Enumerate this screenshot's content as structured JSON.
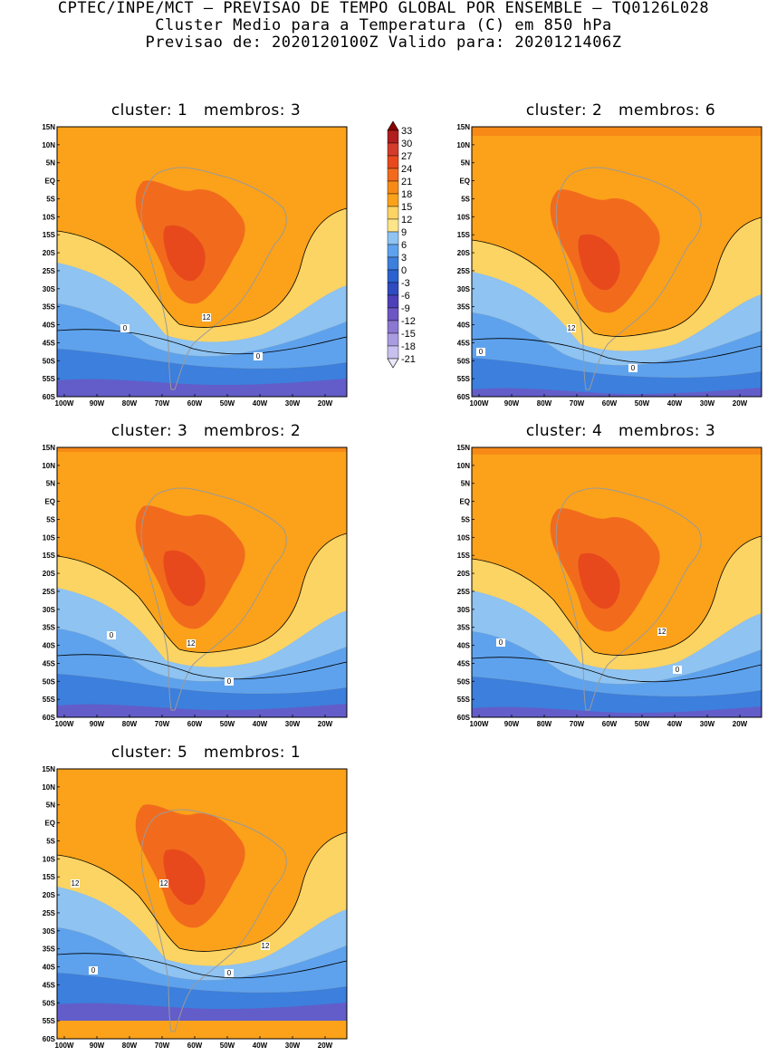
{
  "title": {
    "line1": "CPTEC/INPE/MCT – PREVISAO DE TEMPO GLOBAL POR ENSEMBLE – TQ0126L028",
    "line2": "Cluster Medio para a Temperatura (C) em 850 hPa",
    "line3": "Previsao de: 2020120100Z   Valido para: 2020121406Z"
  },
  "lat_labels": [
    "15N",
    "10N",
    "5N",
    "EQ",
    "5S",
    "10S",
    "15S",
    "20S",
    "25S",
    "30S",
    "35S",
    "40S",
    "45S",
    "50S",
    "55S",
    "60S"
  ],
  "lon_labels": [
    "100W",
    "90W",
    "80W",
    "70W",
    "60W",
    "50W",
    "40W",
    "30W",
    "20W"
  ],
  "colorbar": {
    "labels": [
      "33",
      "30",
      "27",
      "24",
      "21",
      "18",
      "15",
      "12",
      "9",
      "6",
      "3",
      "0",
      "-3",
      "-6",
      "-9",
      "-12",
      "-15",
      "-18",
      "-21"
    ],
    "colors": [
      "#8b0000",
      "#b01e1e",
      "#d33b2b",
      "#e8491c",
      "#f26b1d",
      "#f78a17",
      "#fba21a",
      "#fcd463",
      "#ffe58a",
      "#8ec3f2",
      "#5ea2ed",
      "#3c7fdd",
      "#2c62cf",
      "#2f4bc0",
      "#4e40b8",
      "#6d55c4",
      "#8a78d1",
      "#a99ce0",
      "#c8c0ee",
      "#ebe8fb"
    ]
  },
  "panels": [
    {
      "title": "cluster: 1   membros: 3",
      "contour_labels": [
        "12",
        "0",
        "0"
      ]
    },
    {
      "title": "cluster: 2   membros: 6",
      "contour_labels": [
        "12",
        "0",
        "0"
      ]
    },
    {
      "title": "cluster: 3   membros: 2",
      "contour_labels": [
        "12",
        "0",
        "0"
      ]
    },
    {
      "title": "cluster: 4   membros: 3",
      "contour_labels": [
        "12",
        "0",
        "0"
      ]
    },
    {
      "title": "cluster: 5   membros: 1",
      "contour_labels": [
        "12",
        "12",
        "12",
        "0",
        "0"
      ]
    }
  ]
}
